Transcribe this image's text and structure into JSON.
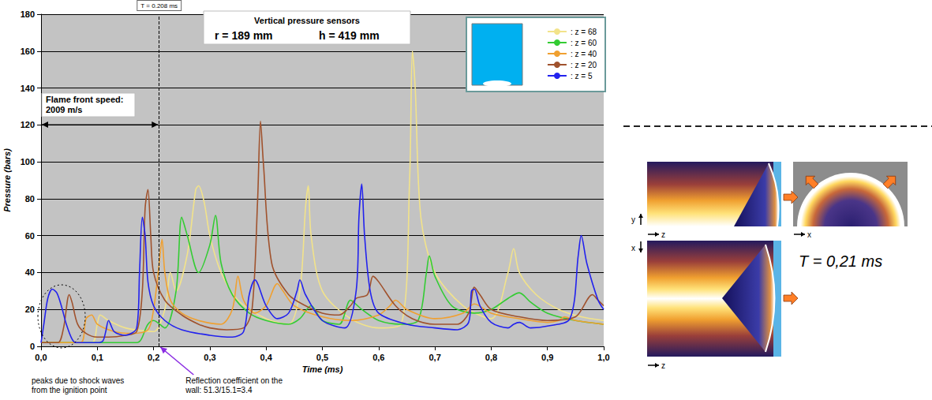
{
  "chart_data": {
    "type": "line",
    "title": "Vertical pressure sensors",
    "subtitle": [
      "r = 189 mm",
      "h = 419 mm"
    ],
    "x_label": "Time (ms)",
    "y_label": "Pressure (bars)",
    "xlim": [
      0,
      1
    ],
    "xticks": [
      {
        "value": 0,
        "label": "0,0"
      },
      {
        "value": 0.1,
        "label": "0,1"
      },
      {
        "value": 0.2,
        "label": "0,2"
      },
      {
        "value": 0.3,
        "label": "0,3"
      },
      {
        "value": 0.4,
        "label": "0,4"
      },
      {
        "value": 0.5,
        "label": "0,5"
      },
      {
        "value": 0.6,
        "label": "0,6"
      },
      {
        "value": 0.7,
        "label": "0,7"
      },
      {
        "value": 0.8,
        "label": "0,8"
      },
      {
        "value": 0.9,
        "label": "0,9"
      },
      {
        "value": 1,
        "label": "1,0"
      }
    ],
    "ylim": [
      0,
      180
    ],
    "yticks": [
      0,
      20,
      40,
      60,
      80,
      100,
      120,
      140,
      160,
      180
    ],
    "grid": true,
    "legend": "upper right",
    "series": [
      {
        "name": ": z = 68",
        "color": "#f2e38a",
        "x": [
          0,
          0.09,
          0.1,
          0.105,
          0.12,
          0.15,
          0.2,
          0.22,
          0.23,
          0.24,
          0.26,
          0.275,
          0.28,
          0.29,
          0.3,
          0.32,
          0.35,
          0.4,
          0.44,
          0.46,
          0.47,
          0.475,
          0.48,
          0.5,
          0.55,
          0.6,
          0.64,
          0.655,
          0.66,
          0.665,
          0.675,
          0.7,
          0.75,
          0.8,
          0.83,
          0.84,
          0.85,
          0.88,
          0.92,
          0.96,
          1.0
        ],
        "values": [
          2,
          2,
          12,
          17,
          14,
          10,
          8,
          20,
          40,
          30,
          50,
          85,
          87,
          78,
          60,
          40,
          25,
          15,
          12,
          30,
          75,
          87,
          60,
          30,
          15,
          10,
          12,
          90,
          160,
          140,
          70,
          40,
          22,
          15,
          40,
          53,
          40,
          28,
          20,
          16,
          14
        ]
      },
      {
        "name": ": z = 60",
        "color": "#33cc33",
        "x": [
          0,
          0.17,
          0.19,
          0.2,
          0.22,
          0.24,
          0.25,
          0.26,
          0.28,
          0.3,
          0.31,
          0.32,
          0.34,
          0.37,
          0.4,
          0.44,
          0.46,
          0.48,
          0.5,
          0.53,
          0.55,
          0.57,
          0.6,
          0.64,
          0.67,
          0.685,
          0.69,
          0.7,
          0.73,
          0.77,
          0.8,
          0.83,
          0.85,
          0.87,
          0.9,
          0.95,
          1.0
        ],
        "values": [
          2,
          2,
          12,
          14,
          10,
          30,
          70,
          60,
          40,
          55,
          71,
          45,
          28,
          18,
          14,
          12,
          15,
          22,
          14,
          12,
          25,
          20,
          14,
          12,
          14,
          40,
          49,
          38,
          22,
          18,
          20,
          26,
          29,
          24,
          18,
          14,
          12
        ]
      },
      {
        "name": ": z = 40",
        "color": "#f0a030",
        "x": [
          0,
          0.07,
          0.08,
          0.09,
          0.1,
          0.13,
          0.16,
          0.19,
          0.2,
          0.21,
          0.215,
          0.22,
          0.23,
          0.25,
          0.28,
          0.32,
          0.34,
          0.35,
          0.36,
          0.38,
          0.4,
          0.42,
          0.43,
          0.45,
          0.5,
          0.55,
          0.6,
          0.62,
          0.63,
          0.65,
          0.7,
          0.75,
          0.77,
          0.8,
          0.85,
          0.9,
          0.92,
          0.93,
          0.95,
          1.0
        ],
        "values": [
          2,
          2,
          15,
          17,
          12,
          8,
          7,
          9,
          20,
          45,
          58,
          40,
          25,
          18,
          14,
          12,
          20,
          38,
          25,
          18,
          22,
          34,
          30,
          22,
          16,
          14,
          17,
          22,
          25,
          20,
          15,
          18,
          23,
          18,
          15,
          13,
          14,
          16,
          14,
          12
        ]
      },
      {
        "name": ": z = 20",
        "color": "#a0522d",
        "x": [
          0,
          0.03,
          0.04,
          0.05,
          0.055,
          0.065,
          0.08,
          0.1,
          0.12,
          0.15,
          0.17,
          0.18,
          0.185,
          0.19,
          0.195,
          0.2,
          0.22,
          0.25,
          0.28,
          0.3,
          0.33,
          0.36,
          0.375,
          0.385,
          0.39,
          0.395,
          0.41,
          0.44,
          0.47,
          0.5,
          0.53,
          0.55,
          0.56,
          0.58,
          0.59,
          0.6,
          0.63,
          0.66,
          0.7,
          0.74,
          0.76,
          0.77,
          0.78,
          0.8,
          0.85,
          0.9,
          0.95,
          0.98,
          0.99,
          1.0
        ],
        "values": [
          2,
          2,
          10,
          28,
          24,
          12,
          7,
          5,
          5,
          6,
          8,
          30,
          75,
          85,
          60,
          40,
          25,
          17,
          12,
          10,
          9,
          10,
          20,
          80,
          122,
          100,
          45,
          28,
          22,
          18,
          17,
          22,
          26,
          28,
          38,
          35,
          22,
          15,
          12,
          12,
          18,
          32,
          28,
          20,
          16,
          14,
          16,
          28,
          25,
          22
        ]
      },
      {
        "name": ": z = 5",
        "color": "#2222ee",
        "x": [
          0,
          0.005,
          0.012,
          0.02,
          0.028,
          0.036,
          0.045,
          0.055,
          0.062,
          0.07,
          0.08,
          0.1,
          0.11,
          0.115,
          0.12,
          0.13,
          0.15,
          0.17,
          0.175,
          0.18,
          0.185,
          0.19,
          0.2,
          0.22,
          0.25,
          0.3,
          0.34,
          0.36,
          0.37,
          0.38,
          0.4,
          0.42,
          0.44,
          0.455,
          0.46,
          0.47,
          0.5,
          0.54,
          0.56,
          0.565,
          0.57,
          0.575,
          0.585,
          0.6,
          0.65,
          0.7,
          0.74,
          0.76,
          0.765,
          0.77,
          0.78,
          0.8,
          0.83,
          0.84,
          0.85,
          0.87,
          0.9,
          0.94,
          0.955,
          0.96,
          0.97,
          0.99,
          1.0
        ],
        "values": [
          2,
          12,
          26,
          31,
          29,
          22,
          12,
          4,
          2,
          2,
          2,
          2,
          3,
          8,
          14,
          8,
          6,
          10,
          40,
          70,
          60,
          35,
          22,
          14,
          9,
          6,
          5,
          8,
          28,
          36,
          22,
          15,
          18,
          30,
          36,
          28,
          14,
          10,
          30,
          70,
          88,
          60,
          30,
          18,
          12,
          10,
          9,
          13,
          30,
          31,
          22,
          13,
          10,
          12,
          13,
          10,
          11,
          15,
          50,
          60,
          45,
          25,
          20
        ]
      }
    ],
    "reference_line": {
      "x": 0.208,
      "label": "T = 0.208 ms"
    },
    "flame_front_note": [
      "Flame front speed:",
      "2009 m/s"
    ],
    "shock_note": [
      "peaks due to shock waves",
      "from the ignition point"
    ],
    "reflection_note": [
      "Reflection coefficient on the",
      "wall: 51.3/15.1=3.4"
    ]
  },
  "side_panel": {
    "time_label": "T = 0,21 ms",
    "axis_letters": {
      "top_left": [
        "y",
        "z"
      ],
      "top_right": [
        "x"
      ],
      "bottom": [
        "x",
        "z"
      ]
    }
  }
}
